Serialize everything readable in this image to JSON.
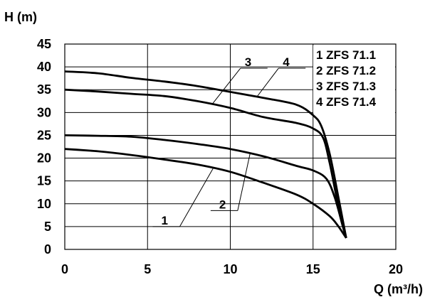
{
  "chart_data": {
    "type": "line",
    "title": "",
    "xlabel": "Q (m³/h)",
    "ylabel": "H (m)",
    "xlim": [
      0,
      20
    ],
    "ylim": [
      0,
      45
    ],
    "xticks": [
      0,
      5,
      10,
      15,
      20
    ],
    "yticks": [
      0,
      5,
      10,
      15,
      20,
      25,
      30,
      35,
      40,
      45
    ],
    "grid": true,
    "legend_position": "top-right",
    "legend": [
      "1  ZFS 71.1",
      "2  ZFS 71.2",
      "3  ZFS 71.3",
      "4  ZFS 71.4"
    ],
    "series": [
      {
        "name": "1",
        "x": [
          0,
          2,
          4,
          6,
          8,
          10,
          12,
          14,
          15,
          16,
          16.5,
          17
        ],
        "y": [
          22,
          21.5,
          20.7,
          19.7,
          18.6,
          17,
          14.6,
          12,
          10,
          7.3,
          5.2,
          2.5
        ]
      },
      {
        "name": "2",
        "x": [
          0,
          2,
          4,
          6,
          8,
          10,
          12,
          14,
          15,
          15.8,
          16.3,
          16.8,
          17
        ],
        "y": [
          25,
          24.9,
          24.7,
          24,
          23.1,
          22,
          20.4,
          18.3,
          17.3,
          15.5,
          11.5,
          5,
          2.5
        ]
      },
      {
        "name": "3",
        "x": [
          0,
          2,
          4,
          6,
          8,
          10,
          12,
          14,
          15,
          15.6,
          16,
          16.5,
          17
        ],
        "y": [
          35,
          34.6,
          34.1,
          33.6,
          32.5,
          31,
          29,
          27.7,
          26.5,
          24.5,
          19,
          10,
          2.5
        ]
      },
      {
        "name": "4",
        "x": [
          0,
          2,
          4,
          6,
          8,
          10,
          12,
          14,
          15,
          15.5,
          16,
          16.5,
          17
        ],
        "y": [
          39,
          38.6,
          37.6,
          36.8,
          35.8,
          34.5,
          33.2,
          31.7,
          29.4,
          27,
          21,
          12,
          2.5
        ]
      }
    ],
    "annotations": [
      {
        "label": "1",
        "series": 1,
        "anchor_x": 9,
        "anchor_y": 18,
        "text_x": 6,
        "text_y": 5
      },
      {
        "label": "2",
        "series": 2,
        "anchor_x": 11.2,
        "anchor_y": 21.1,
        "text_x": 9.5,
        "text_y": 8.5
      },
      {
        "label": "3",
        "series": 3,
        "anchor_x": 8.9,
        "anchor_y": 31.8,
        "text_x": 10.7,
        "text_y": 39.7
      },
      {
        "label": "4",
        "series": 4,
        "anchor_x": 11.6,
        "anchor_y": 33.4,
        "text_x": 13,
        "text_y": 39.7
      }
    ]
  }
}
